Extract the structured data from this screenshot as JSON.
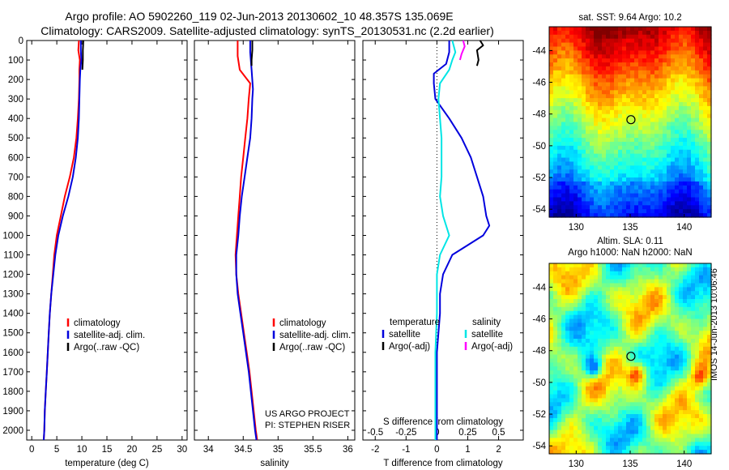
{
  "header": {
    "line1": "Argo profile: AO 5902260_119 02-Jun-2013 20130602_10 48.357S 135.069E",
    "line2": "Climatology: CARS2009. Satellite-adjusted climatology: synTS_20130531.nc (2.2d earlier)"
  },
  "map_sst": {
    "title": "sat. SST: 9.64 Argo: 10.2"
  },
  "map_sla": {
    "title1": "Altim. SLA: 0.11",
    "title2": "Argo h1000: NaN h2000: NaN"
  },
  "credit": {
    "line1": "US ARGO PROJECT",
    "line2": "PI: STEPHEN RISER"
  },
  "stamp": "IMOS 14-Jun-2013 10:06:46",
  "colors": {
    "climatology": "#ff0000",
    "satellite": "#0000dd",
    "argo": "#000000",
    "sal_satellite": "#00e5e5",
    "sal_argo": "#ff00ff"
  },
  "chart_data": [
    {
      "type": "line",
      "id": "temperature",
      "xlabel": "temperature (deg C)",
      "xlim": [
        -1,
        31
      ],
      "ylim": [
        2050,
        0
      ],
      "xticks": [
        "0",
        "5",
        "10",
        "15",
        "20",
        "25",
        "30"
      ],
      "xtick_values": [
        0,
        5,
        10,
        15,
        20,
        25,
        30
      ],
      "yticks": [
        "0",
        "100",
        "200",
        "300",
        "400",
        "500",
        "600",
        "700",
        "800",
        "900",
        "1000",
        "1100",
        "1200",
        "1300",
        "1400",
        "1500",
        "1600",
        "1700",
        "1800",
        "1900",
        "2000"
      ],
      "ytick_values": [
        0,
        100,
        200,
        300,
        400,
        500,
        600,
        700,
        800,
        900,
        1000,
        1100,
        1200,
        1300,
        1400,
        1500,
        1600,
        1700,
        1800,
        1900,
        2000
      ],
      "legend": [
        "climatology",
        "satellite-adj. clim.",
        "Argo(..raw -QC)"
      ],
      "series": [
        {
          "name": "climatology",
          "color": "#ff0000",
          "points": [
            [
              9.4,
              0
            ],
            [
              9.3,
              50
            ],
            [
              9.6,
              100
            ],
            [
              9.5,
              150
            ],
            [
              9.5,
              200
            ],
            [
              9.4,
              300
            ],
            [
              9.2,
              400
            ],
            [
              8.9,
              500
            ],
            [
              8.4,
              600
            ],
            [
              7.6,
              700
            ],
            [
              6.6,
              800
            ],
            [
              5.8,
              900
            ],
            [
              5.0,
              1000
            ],
            [
              4.5,
              1100
            ],
            [
              4.2,
              1200
            ],
            [
              3.9,
              1300
            ],
            [
              3.6,
              1400
            ],
            [
              3.4,
              1500
            ],
            [
              3.2,
              1600
            ],
            [
              3.0,
              1700
            ],
            [
              2.8,
              1800
            ],
            [
              2.6,
              1900
            ],
            [
              2.5,
              2000
            ],
            [
              2.4,
              2050
            ]
          ]
        },
        {
          "name": "satellite-adj. clim.",
          "color": "#0000dd",
          "points": [
            [
              9.8,
              0
            ],
            [
              9.8,
              50
            ],
            [
              9.9,
              100
            ],
            [
              9.7,
              150
            ],
            [
              9.6,
              200
            ],
            [
              9.5,
              300
            ],
            [
              9.4,
              400
            ],
            [
              9.2,
              500
            ],
            [
              8.8,
              600
            ],
            [
              8.2,
              700
            ],
            [
              7.3,
              800
            ],
            [
              6.2,
              900
            ],
            [
              5.3,
              1000
            ],
            [
              4.7,
              1100
            ],
            [
              4.3,
              1200
            ],
            [
              3.9,
              1300
            ],
            [
              3.6,
              1400
            ],
            [
              3.4,
              1500
            ],
            [
              3.2,
              1600
            ],
            [
              3.0,
              1700
            ],
            [
              2.8,
              1800
            ],
            [
              2.6,
              1900
            ],
            [
              2.5,
              2000
            ],
            [
              2.4,
              2050
            ]
          ]
        },
        {
          "name": "Argo(..raw -QC)",
          "color": "#000000",
          "points": [
            [
              10.3,
              0
            ],
            [
              10.2,
              50
            ],
            [
              10.2,
              100
            ],
            [
              10.1,
              150
            ]
          ]
        }
      ]
    },
    {
      "type": "line",
      "id": "salinity",
      "xlabel": "salinity",
      "xlim": [
        33.8,
        36.1
      ],
      "ylim": [
        2050,
        0
      ],
      "xticks": [
        "34",
        "34.5",
        "35",
        "35.5",
        "36"
      ],
      "xtick_values": [
        34,
        34.5,
        35,
        35.5,
        36
      ],
      "legend": [
        "climatology",
        "satellite-adj. clim.",
        "Argo(..raw -QC)"
      ],
      "series": [
        {
          "name": "climatology",
          "color": "#ff0000",
          "points": [
            [
              34.42,
              0
            ],
            [
              34.42,
              80
            ],
            [
              34.45,
              150
            ],
            [
              34.6,
              220
            ],
            [
              34.58,
              300
            ],
            [
              34.56,
              400
            ],
            [
              34.53,
              500
            ],
            [
              34.5,
              600
            ],
            [
              34.47,
              700
            ],
            [
              34.45,
              800
            ],
            [
              34.43,
              900
            ],
            [
              34.41,
              1000
            ],
            [
              34.39,
              1100
            ],
            [
              34.4,
              1200
            ],
            [
              34.43,
              1300
            ],
            [
              34.47,
              1400
            ],
            [
              34.51,
              1500
            ],
            [
              34.55,
              1600
            ],
            [
              34.59,
              1700
            ],
            [
              34.62,
              1800
            ],
            [
              34.65,
              1900
            ],
            [
              34.68,
              2000
            ],
            [
              34.7,
              2050
            ]
          ]
        },
        {
          "name": "satellite-adj. clim.",
          "color": "#0000dd",
          "points": [
            [
              34.6,
              0
            ],
            [
              34.6,
              60
            ],
            [
              34.62,
              150
            ],
            [
              34.64,
              250
            ],
            [
              34.63,
              300
            ],
            [
              34.62,
              400
            ],
            [
              34.6,
              500
            ],
            [
              34.56,
              600
            ],
            [
              34.52,
              700
            ],
            [
              34.48,
              800
            ],
            [
              34.45,
              900
            ],
            [
              34.43,
              1000
            ],
            [
              34.4,
              1100
            ],
            [
              34.4,
              1200
            ],
            [
              34.42,
              1300
            ],
            [
              34.46,
              1400
            ],
            [
              34.5,
              1500
            ],
            [
              34.54,
              1600
            ],
            [
              34.58,
              1700
            ],
            [
              34.61,
              1800
            ],
            [
              34.64,
              1900
            ],
            [
              34.67,
              2000
            ],
            [
              34.69,
              2050
            ]
          ]
        },
        {
          "name": "Argo(..raw -QC)",
          "color": "#000000",
          "points": [
            [
              34.63,
              0
            ],
            [
              34.63,
              50
            ],
            [
              34.62,
              100
            ],
            [
              34.62,
              130
            ]
          ]
        }
      ]
    },
    {
      "type": "line",
      "id": "difference",
      "xlabel": "T difference from climatology",
      "xlabel_top": "S difference from climatology",
      "xlim": [
        -2.4,
        2.8
      ],
      "ylim": [
        2050,
        0
      ],
      "xticks": [
        "-2",
        "-1",
        "0",
        "1",
        "2"
      ],
      "xtick_values": [
        -2,
        -1,
        0,
        1,
        2
      ],
      "s_xticks": [
        "-0.5",
        "-0.25",
        "0",
        "0.25",
        "0.5"
      ],
      "s_xtick_values": [
        -0.5,
        -0.25,
        0,
        0.25,
        0.5
      ],
      "legend_headers": [
        "temperature",
        "salinity"
      ],
      "legend": [
        "satellite",
        "Argo(-adj)",
        "satellite",
        "Argo(-adj)"
      ],
      "series": [
        {
          "name": "temperature satellite",
          "color": "#0000dd",
          "points": [
            [
              0.4,
              0
            ],
            [
              0.4,
              60
            ],
            [
              0.3,
              120
            ],
            [
              -0.1,
              170
            ],
            [
              -0.1,
              220
            ],
            [
              -0.05,
              300
            ],
            [
              0.4,
              400
            ],
            [
              0.8,
              500
            ],
            [
              1.1,
              600
            ],
            [
              1.3,
              700
            ],
            [
              1.5,
              800
            ],
            [
              1.6,
              900
            ],
            [
              1.7,
              950
            ],
            [
              1.5,
              1000
            ],
            [
              1.0,
              1050
            ],
            [
              0.5,
              1100
            ],
            [
              0.2,
              1200
            ],
            [
              0.1,
              1300
            ],
            [
              0.1,
              1400
            ],
            [
              0.05,
              1500
            ],
            [
              0.0,
              1600
            ],
            [
              0.0,
              1700
            ],
            [
              0.0,
              1800
            ],
            [
              0.0,
              1900
            ],
            [
              0.0,
              2000
            ],
            [
              0.0,
              2050
            ]
          ]
        },
        {
          "name": "temperature Argo(-adj)",
          "color": "#000000",
          "points": [
            [
              1.4,
              0
            ],
            [
              1.5,
              25
            ],
            [
              1.3,
              50
            ],
            [
              1.35,
              100
            ],
            [
              1.3,
              130
            ]
          ]
        },
        {
          "name": "salinity satellite",
          "color": "#00e5e5",
          "points": [
            [
              0.5,
              0
            ],
            [
              0.6,
              60
            ],
            [
              0.5,
              100
            ],
            [
              0.4,
              150
            ],
            [
              0.1,
              220
            ],
            [
              0.05,
              300
            ],
            [
              0.15,
              500
            ],
            [
              0.15,
              700
            ],
            [
              0.1,
              800
            ],
            [
              0.2,
              900
            ],
            [
              0.4,
              1000
            ],
            [
              0.1,
              1100
            ],
            [
              0.0,
              1200
            ],
            [
              0.0,
              1400
            ],
            [
              -0.05,
              1600
            ],
            [
              -0.05,
              1800
            ],
            [
              -0.05,
              2000
            ],
            [
              -0.05,
              2050
            ]
          ]
        },
        {
          "name": "salinity Argo(-adj)",
          "color": "#ff00ff",
          "points": [
            [
              0.85,
              0
            ],
            [
              0.9,
              30
            ],
            [
              0.8,
              70
            ],
            [
              0.75,
              100
            ]
          ]
        }
      ]
    },
    {
      "type": "heatmap",
      "id": "sst_map",
      "xlim": [
        127.5,
        142.5
      ],
      "ylim": [
        -54.5,
        -42.5
      ],
      "xticks": [
        "130",
        "135",
        "140"
      ],
      "xtick_values": [
        130,
        135,
        140
      ],
      "yticks": [
        "-44",
        "-46",
        "-48",
        "-50",
        "-52",
        "-54"
      ],
      "ytick_values": [
        -44,
        -46,
        -48,
        -50,
        -52,
        -54
      ],
      "marker": [
        135.069,
        -48.357
      ]
    },
    {
      "type": "heatmap",
      "id": "sla_map",
      "xlim": [
        127.5,
        142.5
      ],
      "ylim": [
        -54.5,
        -42.5
      ],
      "xticks": [
        "130",
        "135",
        "140"
      ],
      "xtick_values": [
        130,
        135,
        140
      ],
      "yticks": [
        "-44",
        "-46",
        "-48",
        "-50",
        "-52",
        "-54"
      ],
      "ytick_values": [
        -44,
        -46,
        -48,
        -50,
        -52,
        -54
      ],
      "marker": [
        135.069,
        -48.357
      ]
    }
  ]
}
